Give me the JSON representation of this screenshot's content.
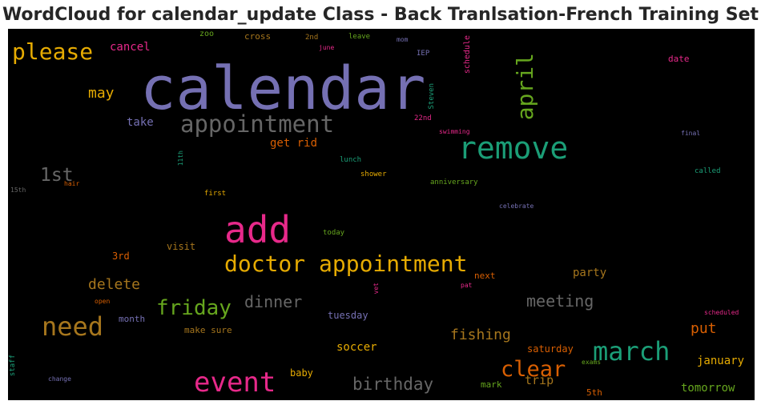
{
  "title": "WordCloud for calendar_update Class - Back Tranlsation-French Training Set",
  "chart_data": {
    "type": "wordcloud",
    "background": "#000000",
    "words": [
      {
        "text": "calendar",
        "color": "#7570b3"
      },
      {
        "text": "add",
        "color": "#e7298a"
      },
      {
        "text": "remove",
        "color": "#1b9e77"
      },
      {
        "text": "doctor appointment",
        "color": "#e6ab02"
      },
      {
        "text": "appointment",
        "color": "#666666"
      },
      {
        "text": "event",
        "color": "#e7298a"
      },
      {
        "text": "march",
        "color": "#1b9e77"
      },
      {
        "text": "need",
        "color": "#a6761d"
      },
      {
        "text": "please",
        "color": "#e6ab02"
      },
      {
        "text": "april",
        "color": "#66a61e"
      },
      {
        "text": "clear",
        "color": "#d95f02"
      },
      {
        "text": "friday",
        "color": "#66a61e"
      },
      {
        "text": "1st",
        "color": "#666666"
      },
      {
        "text": "birthday",
        "color": "#666666"
      },
      {
        "text": "dinner",
        "color": "#666666"
      },
      {
        "text": "meeting",
        "color": "#666666"
      },
      {
        "text": "delete",
        "color": "#a6761d"
      },
      {
        "text": "fishing",
        "color": "#a6761d"
      },
      {
        "text": "put",
        "color": "#d95f02"
      },
      {
        "text": "may",
        "color": "#e6ab02"
      },
      {
        "text": "get rid",
        "color": "#d95f02"
      },
      {
        "text": "take",
        "color": "#7570b3"
      },
      {
        "text": "cancel",
        "color": "#e7298a"
      },
      {
        "text": "trip",
        "color": "#a6761d"
      },
      {
        "text": "tomorrow",
        "color": "#66a61e"
      },
      {
        "text": "january",
        "color": "#e6ab02"
      },
      {
        "text": "party",
        "color": "#a6761d"
      },
      {
        "text": "soccer",
        "color": "#e6ab02"
      },
      {
        "text": "saturday",
        "color": "#d95f02"
      },
      {
        "text": "tuesday",
        "color": "#7570b3"
      },
      {
        "text": "visit",
        "color": "#a6761d"
      },
      {
        "text": "3rd",
        "color": "#d95f02"
      },
      {
        "text": "month",
        "color": "#7570b3"
      },
      {
        "text": "make sure",
        "color": "#a6761d"
      },
      {
        "text": "baby",
        "color": "#e6ab02"
      },
      {
        "text": "mark",
        "color": "#66a61e"
      },
      {
        "text": "5th",
        "color": "#d95f02"
      },
      {
        "text": "next",
        "color": "#d95f02"
      },
      {
        "text": "date",
        "color": "#e7298a"
      },
      {
        "text": "schedule",
        "color": "#e7298a"
      },
      {
        "text": "zoo",
        "color": "#66a61e"
      },
      {
        "text": "cross",
        "color": "#a6761d"
      },
      {
        "text": "2nd",
        "color": "#a6761d"
      },
      {
        "text": "leave",
        "color": "#66a61e"
      },
      {
        "text": "mom",
        "color": "#7570b3"
      },
      {
        "text": "june",
        "color": "#e7298a"
      },
      {
        "text": "IEP",
        "color": "#7570b3"
      },
      {
        "text": "Steven",
        "color": "#1b9e77"
      },
      {
        "text": "22nd",
        "color": "#e7298a"
      },
      {
        "text": "swimming",
        "color": "#e7298a"
      },
      {
        "text": "final",
        "color": "#7570b3"
      },
      {
        "text": "called",
        "color": "#1b9e77"
      },
      {
        "text": "11th",
        "color": "#1b9e77"
      },
      {
        "text": "lunch",
        "color": "#1b9e77"
      },
      {
        "text": "shower",
        "color": "#e6ab02"
      },
      {
        "text": "anniversary",
        "color": "#66a61e"
      },
      {
        "text": "hair",
        "color": "#d95f02"
      },
      {
        "text": "15th",
        "color": "#666666"
      },
      {
        "text": "first",
        "color": "#e6ab02"
      },
      {
        "text": "celebrate",
        "color": "#7570b3"
      },
      {
        "text": "today",
        "color": "#66a61e"
      },
      {
        "text": "vet",
        "color": "#e7298a"
      },
      {
        "text": "pat",
        "color": "#e7298a"
      },
      {
        "text": "open",
        "color": "#d95f02"
      },
      {
        "text": "scheduled",
        "color": "#e7298a"
      },
      {
        "text": "exams",
        "color": "#66a61e"
      },
      {
        "text": "staff",
        "color": "#1b9e77"
      },
      {
        "text": "change",
        "color": "#7570b3"
      }
    ]
  }
}
